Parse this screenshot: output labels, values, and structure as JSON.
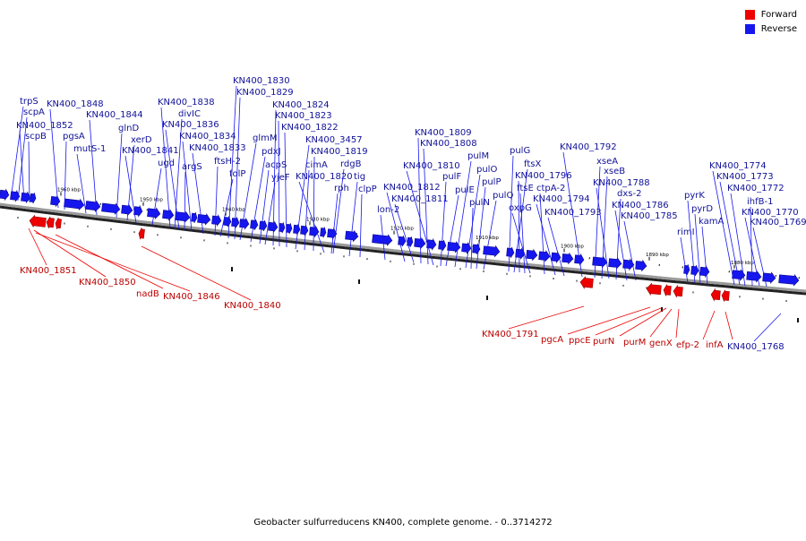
{
  "legend": {
    "forward_label": "Forward",
    "reverse_label": "Reverse"
  },
  "colors": {
    "forward": "#ee0000",
    "reverse": "#1616ee",
    "backbone": "#9a9a9a"
  },
  "caption": "Geobacter sulfurreducens KN400, complete genome. - 0..3714272",
  "kbp_ticks": [
    "1960 kbp",
    "1950 kbp",
    "1940 kbp",
    "1930 kbp",
    "1920 kbp",
    "1910 kbp",
    "1900 kbp",
    "1890 kbp",
    "1880 kbp"
  ],
  "reverse_labels": [
    "trpS",
    "scpA",
    "KN400_1852",
    "scpB",
    "KN400_1848",
    "pgsA",
    "KN400_1844",
    "mutS-1",
    "glnD",
    "xerD",
    "KN400_1841",
    "ugd",
    "KN400_1838",
    "divIC",
    "KN400_1836",
    "KN400_1834",
    "argS",
    "KN400_1833",
    "ftsH-2",
    "folP",
    "KN400_1830",
    "KN400_1829",
    "glmM",
    "pdxJ",
    "acpS",
    "yjeF",
    "KN400_1824",
    "KN400_1823",
    "KN400_1822",
    "KN400_3457",
    "cimA",
    "KN400_1819",
    "KN400_1820",
    "rdgB",
    "rph",
    "tig",
    "clpP",
    "lon-2",
    "KN400_1812",
    "KN400_1811",
    "KN400_1809",
    "KN400_1808",
    "KN400_1810",
    "pulF",
    "pulE",
    "pulM",
    "pulO",
    "pulN",
    "pulP",
    "pulQ",
    "pulG",
    "ftsX",
    "KN400_1796",
    "ftsE",
    "oxpG",
    "ctpA-2",
    "KN400_1794",
    "KN400_1793",
    "KN400_1792",
    "xseA",
    "xseB",
    "KN400_1788",
    "dxs-2",
    "KN400_1786",
    "KN400_1785",
    "rimI",
    "pyrK",
    "pyrD",
    "kamA",
    "KN400_1774",
    "KN400_1773",
    "KN400_1772",
    "ihfB-1",
    "KN400_1770",
    "KN400_1769",
    "KN400_1768"
  ],
  "forward_labels": [
    "KN400_1851",
    "KN400_1850",
    "nadB",
    "KN400_1846",
    "KN400_1840",
    "KN400_1791",
    "pgcA",
    "ppcE",
    "purN",
    "purM",
    "genX",
    "efp-2",
    "infA"
  ]
}
